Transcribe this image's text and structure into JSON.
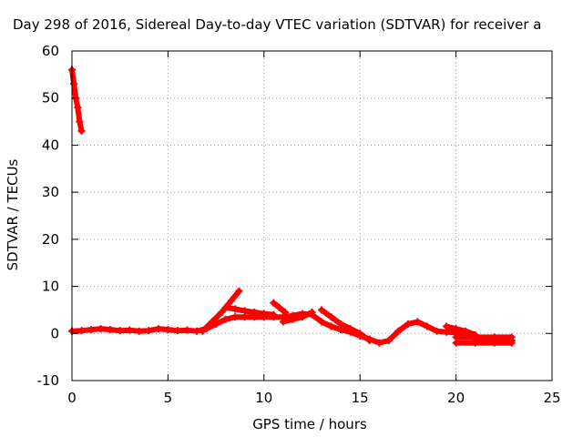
{
  "chart_data": {
    "type": "scatter",
    "title": "Day 298 of 2016, Sidereal Day-to-day VTEC variation (SDTVAR) for receiver a",
    "xlabel": "GPS time / hours",
    "ylabel": "SDTVAR / TECUs",
    "xlim": [
      0,
      25
    ],
    "ylim": [
      -10,
      60
    ],
    "xticks": [
      0,
      5,
      10,
      15,
      20,
      25
    ],
    "yticks": [
      -10,
      0,
      10,
      20,
      30,
      40,
      50,
      60
    ],
    "grid": true,
    "legend": "none",
    "colors": {
      "series": "#ff0000",
      "grid": "#a0a0a0",
      "axis": "#000000"
    },
    "series": [
      {
        "color": "#ff0000",
        "segments": [
          {
            "x": [
              0.0,
              0.1,
              0.2,
              0.3,
              0.4,
              0.5
            ],
            "y": [
              56,
              53,
              50,
              48,
              45,
              43
            ]
          },
          {
            "x": [
              0.0,
              0.5,
              1.0,
              1.5,
              2.0,
              2.5,
              3.0,
              3.5,
              4.0,
              4.5,
              5.0,
              5.5,
              6.0,
              6.5,
              7.0,
              7.5,
              8.0,
              8.5,
              9.0,
              9.5,
              10.0,
              10.5,
              11.0,
              11.5,
              12.0,
              12.5,
              13.0,
              13.5,
              14.0,
              14.5,
              15.0,
              15.5,
              16.0,
              16.5,
              17.0,
              17.5,
              18.0,
              18.5,
              19.0,
              19.5,
              20.0,
              20.5,
              21.0,
              21.5,
              22.0,
              22.5,
              22.9
            ],
            "y": [
              0.5,
              0.6,
              0.8,
              1.0,
              0.8,
              0.6,
              0.7,
              0.5,
              0.6,
              1.0,
              0.8,
              0.6,
              0.7,
              0.5,
              1.0,
              2.0,
              3.0,
              3.5,
              3.5,
              3.5,
              3.5,
              3.5,
              3.5,
              3.8,
              4.2,
              4.0,
              2.5,
              1.5,
              0.8,
              0.3,
              -0.5,
              -1.2,
              -2.0,
              -1.5,
              0.5,
              2.0,
              2.5,
              1.5,
              0.5,
              0.3,
              0.2,
              -0.3,
              -1.0,
              -1.5,
              -1.7,
              -1.6,
              -1.5
            ]
          },
          {
            "x": [
              6.8,
              7.3,
              7.8,
              8.3,
              8.7
            ],
            "y": [
              0.5,
              2.5,
              4.5,
              7.0,
              9.0
            ]
          },
          {
            "x": [
              8.0,
              8.5,
              9.0,
              9.5,
              10.0,
              10.5
            ],
            "y": [
              5.5,
              5.2,
              4.8,
              4.5,
              4.2,
              4.0
            ]
          },
          {
            "x": [
              10.5,
              10.8,
              11.1
            ],
            "y": [
              6.5,
              5.5,
              4.5
            ]
          },
          {
            "x": [
              11.0,
              11.5,
              12.0,
              12.5
            ],
            "y": [
              2.5,
              3.0,
              3.5,
              4.5
            ]
          },
          {
            "x": [
              13.0,
              13.5,
              14.0,
              14.5,
              15.0,
              15.5
            ],
            "y": [
              5.0,
              3.5,
              2.0,
              1.0,
              0.0,
              -1.5
            ]
          },
          {
            "x": [
              19.5,
              20.0,
              20.5,
              21.0
            ],
            "y": [
              1.5,
              1.0,
              0.5,
              -0.3
            ]
          },
          {
            "x": [
              20.0,
              21.0,
              22.0,
              22.9
            ],
            "y": [
              -2.0,
              -2.0,
              -2.0,
              -2.0
            ]
          },
          {
            "x": [
              20.0,
              21.0,
              22.0,
              22.9
            ],
            "y": [
              -0.8,
              -0.8,
              -0.8,
              -0.8
            ]
          }
        ]
      }
    ]
  }
}
